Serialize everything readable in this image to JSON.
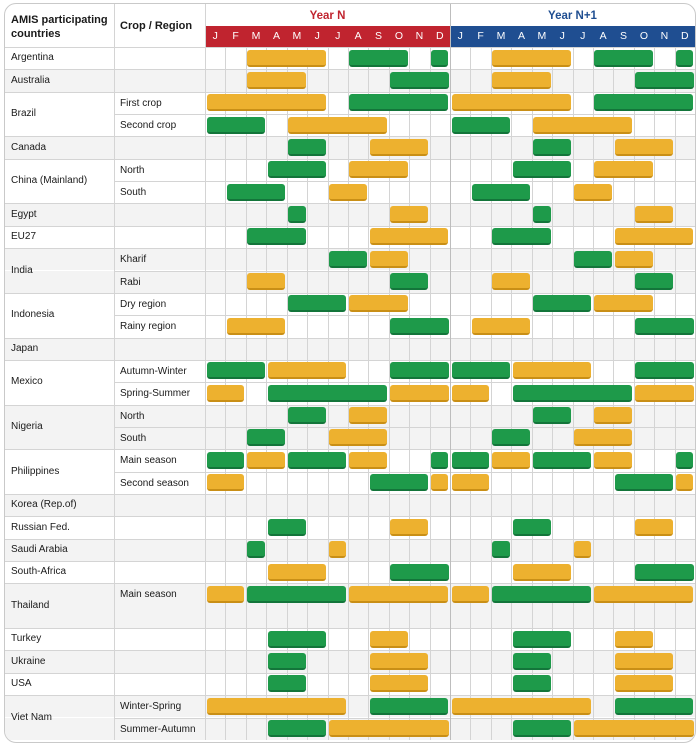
{
  "chart_data": {
    "type": "gantt-calendar",
    "title": "",
    "header": {
      "country_col": "AMIS participating countries",
      "region_col": "Crop / Region",
      "years": [
        {
          "label": "Year N",
          "color": "#C0242F",
          "text_color": "#C0242F"
        },
        {
          "label": "Year N+1",
          "color": "#1F4E91",
          "text_color": "#1F4E91"
        }
      ],
      "months": [
        "J",
        "F",
        "M",
        "A",
        "M",
        "J",
        "J",
        "A",
        "S",
        "O",
        "N",
        "D"
      ]
    },
    "legend": {
      "plant": {
        "color": "#EDB12F"
      },
      "harvest": {
        "color": "#1E9A4A"
      }
    },
    "rows": [
      {
        "country": "Argentina",
        "region": "",
        "plant": [
          [
            2,
            6
          ]
        ],
        "harvest": [
          [
            7,
            10
          ],
          [
            11,
            12
          ]
        ]
      },
      {
        "country": "Australia",
        "region": "",
        "plant": [
          [
            2,
            5
          ]
        ],
        "harvest": [
          [
            9,
            12
          ]
        ]
      },
      {
        "country": "Brazil",
        "region": "First crop",
        "plant": [
          [
            0,
            6
          ]
        ],
        "harvest": [
          [
            7,
            12
          ]
        ]
      },
      {
        "country": "",
        "region": "Second crop",
        "plant": [
          [
            4,
            9
          ]
        ],
        "harvest": [
          [
            0,
            3
          ]
        ]
      },
      {
        "country": "Canada",
        "region": "",
        "plant": [
          [
            8,
            11
          ]
        ],
        "harvest": [
          [
            4,
            6
          ]
        ]
      },
      {
        "country": "China (Mainland)",
        "region": "North",
        "plant": [
          [
            7,
            10
          ]
        ],
        "harvest": [
          [
            3,
            6
          ]
        ]
      },
      {
        "country": "",
        "region": "South",
        "plant": [
          [
            6,
            8
          ]
        ],
        "harvest": [
          [
            1,
            4
          ]
        ]
      },
      {
        "country": "Egypt",
        "region": "",
        "plant": [
          [
            9,
            11
          ]
        ],
        "harvest": [
          [
            4,
            5
          ]
        ]
      },
      {
        "country": "EU27",
        "region": "",
        "plant": [
          [
            8,
            12
          ]
        ],
        "harvest": [
          [
            2,
            5
          ]
        ]
      },
      {
        "country": "India",
        "region": "Kharif",
        "plant": [
          [
            8,
            10
          ]
        ],
        "harvest": [
          [
            6,
            8
          ]
        ]
      },
      {
        "country": "",
        "region": "Rabi",
        "plant": [
          [
            2,
            4
          ]
        ],
        "harvest": [
          [
            9,
            11
          ]
        ]
      },
      {
        "country": "Indonesia",
        "region": "Dry region",
        "plant": [
          [
            7,
            10
          ]
        ],
        "harvest": [
          [
            4,
            7
          ]
        ]
      },
      {
        "country": "",
        "region": "Rainy region",
        "plant": [
          [
            1,
            4
          ]
        ],
        "harvest": [
          [
            9,
            12
          ]
        ]
      },
      {
        "country": "Japan",
        "region": "",
        "plant": [],
        "harvest": []
      },
      {
        "country": "Mexico",
        "region": "Autumn-Winter",
        "plant": [
          [
            3,
            7
          ]
        ],
        "harvest": [
          [
            0,
            3
          ],
          [
            9,
            12
          ]
        ]
      },
      {
        "country": "",
        "region": "Spring-Summer",
        "plant": [
          [
            0,
            2
          ],
          [
            9,
            12
          ]
        ],
        "harvest": [
          [
            3,
            9
          ]
        ]
      },
      {
        "country": "Nigeria",
        "region": "North",
        "plant": [
          [
            7,
            9
          ]
        ],
        "harvest": [
          [
            4,
            6
          ]
        ]
      },
      {
        "country": "",
        "region": "South",
        "plant": [
          [
            6,
            9
          ]
        ],
        "harvest": [
          [
            2,
            4
          ]
        ]
      },
      {
        "country": "Philippines",
        "region": "Main season",
        "plant": [
          [
            2,
            4
          ],
          [
            7,
            9
          ]
        ],
        "harvest": [
          [
            0,
            2
          ],
          [
            4,
            7
          ],
          [
            11,
            12
          ]
        ]
      },
      {
        "country": "",
        "region": "Second season",
        "plant": [
          [
            0,
            2
          ],
          [
            11,
            12
          ]
        ],
        "harvest": [
          [
            8,
            11
          ]
        ]
      },
      {
        "country": "Korea (Rep.of)",
        "region": "",
        "plant": [],
        "harvest": []
      },
      {
        "country": "Russian Fed.",
        "region": "",
        "plant": [
          [
            9,
            11
          ]
        ],
        "harvest": [
          [
            3,
            5
          ]
        ]
      },
      {
        "country": "Saudi Arabia",
        "region": "",
        "plant": [
          [
            6,
            7
          ]
        ],
        "harvest": [
          [
            2,
            3
          ]
        ]
      },
      {
        "country": "South-Africa",
        "region": "",
        "plant": [
          [
            3,
            6
          ]
        ],
        "harvest": [
          [
            9,
            12
          ]
        ]
      },
      {
        "country": "Thailand",
        "region": "Main season",
        "plant": [
          [
            0,
            2
          ],
          [
            7,
            12
          ]
        ],
        "harvest": [
          [
            2,
            7
          ]
        ]
      },
      {
        "country": "Turkey",
        "region": "",
        "plant": [
          [
            8,
            10
          ]
        ],
        "harvest": [
          [
            3,
            6
          ]
        ]
      },
      {
        "country": "Ukraine",
        "region": "",
        "plant": [
          [
            8,
            11
          ]
        ],
        "harvest": [
          [
            3,
            5
          ]
        ]
      },
      {
        "country": "USA",
        "region": "",
        "plant": [
          [
            8,
            11
          ]
        ],
        "harvest": [
          [
            3,
            5
          ]
        ]
      },
      {
        "country": "Viet Nam",
        "region": "Winter-Spring",
        "plant": [
          [
            0,
            7
          ]
        ],
        "harvest": [
          [
            8,
            12
          ]
        ]
      },
      {
        "country": "",
        "region": "Summer-Autumn",
        "plant": [
          [
            6,
            12
          ]
        ],
        "harvest": [
          [
            3,
            6
          ]
        ]
      }
    ]
  }
}
